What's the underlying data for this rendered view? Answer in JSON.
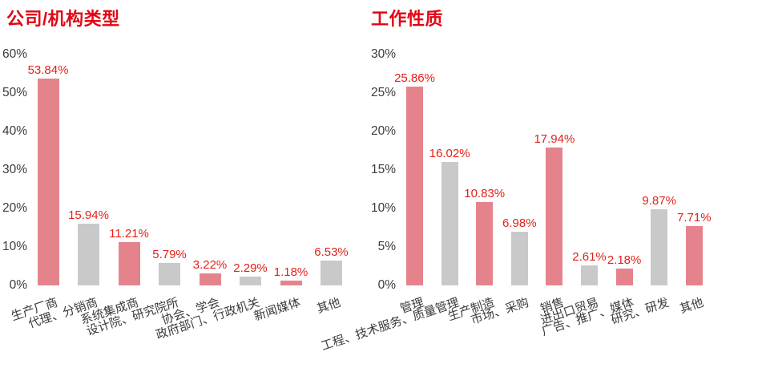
{
  "page": {
    "background": "#ffffff"
  },
  "colors": {
    "title_red": "#E20613",
    "value_label_red": "#E32219",
    "bar_red": "#E5838C",
    "bar_gray": "#C9C9C9",
    "axis_text": "#3C3C3C"
  },
  "chart_data": [
    {
      "type": "bar",
      "title": "公司/机构类型",
      "categories": [
        "生产厂商",
        "代理、分销商",
        "系统集成商",
        "设计院、研究院所",
        "协会、学会",
        "政府部门、行政机关",
        "新闻媒体",
        "其他"
      ],
      "values": [
        53.84,
        15.94,
        11.21,
        5.79,
        3.22,
        2.29,
        1.18,
        6.53
      ],
      "value_labels": [
        "53.84%",
        "15.94%",
        "11.21%",
        "5.79%",
        "3.22%",
        "2.29%",
        "1.18%",
        "6.53%"
      ],
      "bar_colors": [
        "red",
        "gray",
        "red",
        "gray",
        "red",
        "gray",
        "red",
        "gray"
      ],
      "y_ticks": [
        "0%",
        "10%",
        "20%",
        "30%",
        "40%",
        "50%",
        "60%"
      ],
      "ylim": [
        0,
        60
      ],
      "grid": false,
      "legend": "none"
    },
    {
      "type": "bar",
      "title": "工作性质",
      "categories": [
        "管理",
        "工程、技术服务、质量管理",
        "生产制造",
        "市场、采购",
        "销售",
        "进出口贸易",
        "广告、推广、媒体",
        "研究、研发",
        "其他"
      ],
      "values": [
        25.86,
        16.02,
        10.83,
        6.98,
        17.94,
        2.61,
        2.18,
        9.87,
        7.71
      ],
      "value_labels": [
        "25.86%",
        "16.02%",
        "10.83%",
        "6.98%",
        "17.94%",
        "2.61%",
        "2.18%",
        "9.87%",
        "7.71%"
      ],
      "bar_colors": [
        "red",
        "gray",
        "red",
        "gray",
        "red",
        "gray",
        "red",
        "gray",
        "red"
      ],
      "y_ticks": [
        "0%",
        "5%",
        "10%",
        "15%",
        "20%",
        "25%",
        "30%"
      ],
      "ylim": [
        0,
        30
      ],
      "grid": false,
      "legend": "none"
    }
  ]
}
